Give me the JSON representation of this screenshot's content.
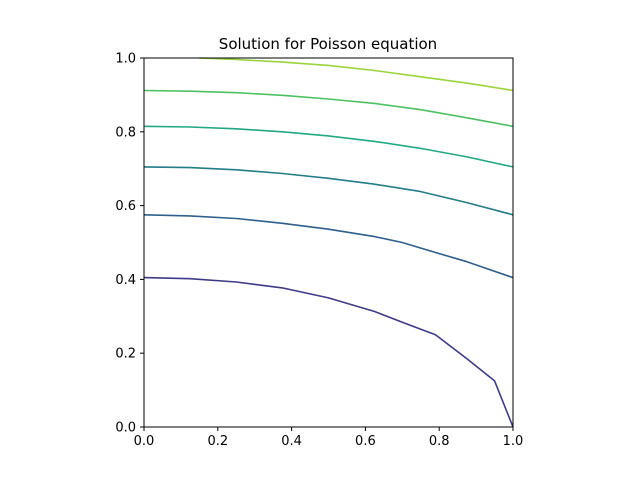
{
  "chart_data": {
    "type": "line",
    "title": "Solution for Poisson equation",
    "xlabel": "",
    "ylabel": "",
    "xlim": [
      0,
      1
    ],
    "ylim": [
      0,
      1
    ],
    "x_ticks": [
      "0.0",
      "0.2",
      "0.4",
      "0.6",
      "0.8",
      "1.0"
    ],
    "y_ticks": [
      "0.0",
      "0.2",
      "0.4",
      "0.6",
      "0.8",
      "1.0"
    ],
    "grid": false,
    "legend": "none",
    "series": [
      {
        "color": "#3e3a86",
        "points": [
          [
            0.0,
            0.405
          ],
          [
            0.125,
            0.402
          ],
          [
            0.25,
            0.393
          ],
          [
            0.375,
            0.377
          ],
          [
            0.5,
            0.35
          ],
          [
            0.625,
            0.313
          ],
          [
            0.7,
            0.284
          ],
          [
            0.75,
            0.265
          ],
          [
            0.79,
            0.25
          ],
          [
            0.875,
            0.185
          ],
          [
            0.95,
            0.125
          ],
          [
            1.0,
            0.0
          ]
        ]
      },
      {
        "color": "#2f5f8d",
        "points": [
          [
            0.0,
            0.575
          ],
          [
            0.125,
            0.572
          ],
          [
            0.25,
            0.565
          ],
          [
            0.375,
            0.552
          ],
          [
            0.5,
            0.536
          ],
          [
            0.625,
            0.516
          ],
          [
            0.7,
            0.5
          ],
          [
            0.79,
            0.473
          ],
          [
            0.875,
            0.448
          ],
          [
            1.0,
            0.405
          ]
        ]
      },
      {
        "color": "#237d86",
        "points": [
          [
            0.0,
            0.705
          ],
          [
            0.125,
            0.703
          ],
          [
            0.25,
            0.697
          ],
          [
            0.375,
            0.687
          ],
          [
            0.5,
            0.674
          ],
          [
            0.625,
            0.658
          ],
          [
            0.75,
            0.638
          ],
          [
            0.875,
            0.608
          ],
          [
            1.0,
            0.575
          ]
        ]
      },
      {
        "color": "#23a883",
        "points": [
          [
            0.0,
            0.815
          ],
          [
            0.125,
            0.813
          ],
          [
            0.25,
            0.808
          ],
          [
            0.375,
            0.8
          ],
          [
            0.5,
            0.789
          ],
          [
            0.625,
            0.774
          ],
          [
            0.75,
            0.755
          ],
          [
            0.875,
            0.732
          ],
          [
            1.0,
            0.705
          ]
        ]
      },
      {
        "color": "#4dc162",
        "points": [
          [
            0.0,
            0.912
          ],
          [
            0.125,
            0.91
          ],
          [
            0.25,
            0.906
          ],
          [
            0.375,
            0.899
          ],
          [
            0.5,
            0.889
          ],
          [
            0.625,
            0.877
          ],
          [
            0.75,
            0.86
          ],
          [
            0.875,
            0.838
          ],
          [
            1.0,
            0.815
          ]
        ]
      },
      {
        "color": "#9bd33d",
        "points": [
          [
            0.15,
            1.0
          ],
          [
            0.25,
            0.996
          ],
          [
            0.375,
            0.989
          ],
          [
            0.5,
            0.98
          ],
          [
            0.625,
            0.966
          ],
          [
            0.75,
            0.949
          ],
          [
            0.875,
            0.932
          ],
          [
            1.0,
            0.912
          ]
        ]
      }
    ]
  }
}
